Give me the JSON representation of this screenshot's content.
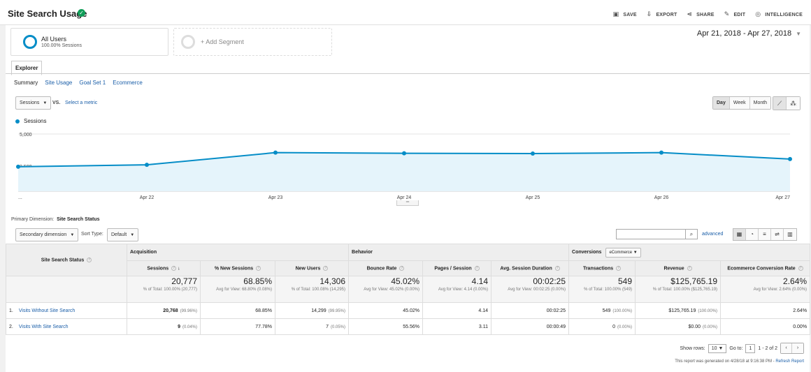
{
  "header": {
    "title": "Site Search Usage",
    "actions": [
      "SAVE",
      "EXPORT",
      "SHARE",
      "EDIT",
      "INTELLIGENCE"
    ]
  },
  "segments": {
    "segment1_name": "All Users",
    "segment1_sub": "100.00% Sessions",
    "add_label": "+ Add Segment"
  },
  "date_range": "Apr 21, 2018 - Apr 27, 2018",
  "tabs": {
    "explorer": "Explorer"
  },
  "subnav": [
    "Summary",
    "Site Usage",
    "Goal Set 1",
    "Ecommerce"
  ],
  "chart_controls": {
    "metric": "Sessions",
    "vs": "VS.",
    "select_metric": "Select a metric",
    "granularity": [
      "Day",
      "Week",
      "Month"
    ],
    "granularity_selected": "Day"
  },
  "chart_data": {
    "type": "area",
    "series": [
      {
        "name": "Sessions",
        "values": [
          2450,
          2600,
          3550,
          3500,
          3480,
          3550,
          3050
        ]
      }
    ],
    "x": [
      "Apr 21",
      "Apr 22",
      "Apr 23",
      "Apr 24",
      "Apr 25",
      "Apr 26",
      "Apr 27"
    ],
    "x_tick_labels": [
      "...",
      "Apr 22",
      "Apr 23",
      "Apr 24",
      "Apr 25",
      "Apr 26",
      "Apr 27"
    ],
    "y_tick_labels": [
      "5,000",
      "2,500"
    ],
    "ylim": [
      0,
      5000
    ],
    "color": "#058dc7",
    "fill": "#e5f4fb"
  },
  "table": {
    "primary_dimension_label": "Primary Dimension:",
    "primary_dimension": "Site Search Status",
    "secondary_dimension": "Secondary dimension",
    "sort_type_label": "Sort Type:",
    "sort_type": "Default",
    "advanced": "advanced",
    "dim_header": "Site Search Status",
    "groups": {
      "acquisition": "Acquisition",
      "behavior": "Behavior",
      "conversions": "Conversions",
      "conversions_select": "eCommerce"
    },
    "columns": [
      "Sessions",
      "% New Sessions",
      "New Users",
      "Bounce Rate",
      "Pages / Session",
      "Avg. Session Duration",
      "Transactions",
      "Revenue",
      "Ecommerce Conversion Rate"
    ],
    "totals": [
      {
        "value": "20,777",
        "sub": "% of Total: 100.00% (20,777)"
      },
      {
        "value": "68.85%",
        "sub": "Avg for View: 68.80% (0.08%)"
      },
      {
        "value": "14,306",
        "sub": "% of Total: 100.08% (14,295)"
      },
      {
        "value": "45.02%",
        "sub": "Avg for View: 45.02% (0.00%)"
      },
      {
        "value": "4.14",
        "sub": "Avg for View: 4.14 (0.00%)"
      },
      {
        "value": "00:02:25",
        "sub": "Avg for View: 00:02:25 (0.00%)"
      },
      {
        "value": "549",
        "sub": "% of Total: 100.00% (549)"
      },
      {
        "value": "$125,765.19",
        "sub": "% of Total: 100.00% ($125,765.19)"
      },
      {
        "value": "2.64%",
        "sub": "Avg for View: 2.64% (0.00%)"
      }
    ],
    "rows": [
      {
        "idx": "1.",
        "name": "Visits Without Site Search",
        "cells": [
          [
            "20,768",
            "(99.96%)"
          ],
          [
            "68.85%",
            ""
          ],
          [
            "14,299",
            "(99.95%)"
          ],
          [
            "45.02%",
            ""
          ],
          [
            "4.14",
            ""
          ],
          [
            "00:02:25",
            ""
          ],
          [
            "549",
            "(100.00%)"
          ],
          [
            "$125,765.19",
            "(100.00%)"
          ],
          [
            "2.64%",
            ""
          ]
        ]
      },
      {
        "idx": "2.",
        "name": "Visits With Site Search",
        "cells": [
          [
            "9",
            "(0.04%)"
          ],
          [
            "77.78%",
            ""
          ],
          [
            "7",
            "(0.05%)"
          ],
          [
            "55.56%",
            ""
          ],
          [
            "3.11",
            ""
          ],
          [
            "00:00:49",
            ""
          ],
          [
            "0",
            "(0.00%)"
          ],
          [
            "$0.00",
            "(0.00%)"
          ],
          [
            "0.00%",
            ""
          ]
        ]
      }
    ]
  },
  "pager": {
    "show_rows_label": "Show rows:",
    "show_rows": "10",
    "goto_label": "Go to:",
    "goto": "1",
    "range": "1 - 2 of 2"
  },
  "footer": {
    "report_text": "This report was generated on 4/28/18 at 9:16:38 PM -",
    "refresh": "Refresh Report"
  }
}
